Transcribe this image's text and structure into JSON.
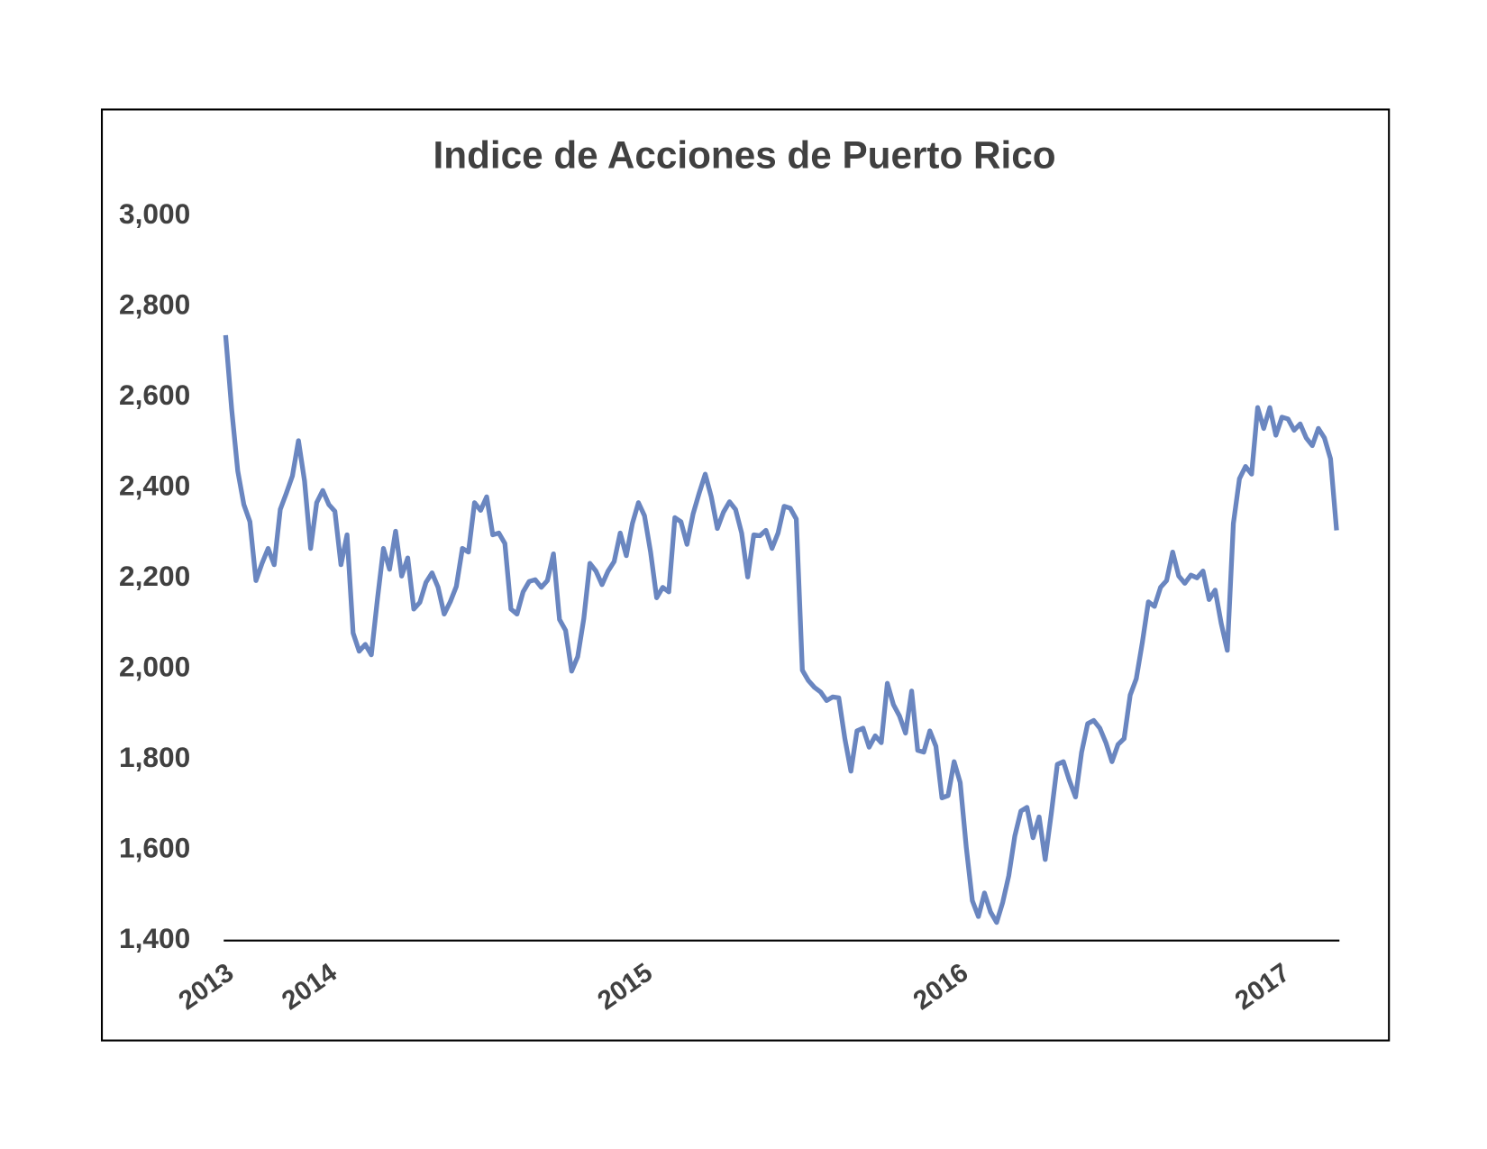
{
  "chart_data": {
    "type": "line",
    "title": "Indice de Acciones de Puerto Rico",
    "categories": [
      "2013",
      null,
      null,
      null,
      null,
      null,
      null,
      null,
      null,
      null,
      null,
      null,
      null,
      null,
      null,
      null,
      null,
      "2014",
      null,
      null,
      null,
      null,
      null,
      null,
      null,
      null,
      null,
      null,
      null,
      null,
      null,
      null,
      null,
      null,
      null,
      null,
      null,
      null,
      null,
      null,
      null,
      null,
      null,
      null,
      null,
      null,
      null,
      null,
      null,
      null,
      null,
      null,
      null,
      null,
      null,
      null,
      null,
      null,
      null,
      null,
      null,
      null,
      null,
      null,
      null,
      null,
      null,
      null,
      null,
      "2015",
      null,
      null,
      null,
      null,
      null,
      null,
      null,
      null,
      null,
      null,
      null,
      null,
      null,
      null,
      null,
      null,
      null,
      null,
      null,
      null,
      null,
      null,
      null,
      null,
      null,
      null,
      null,
      null,
      null,
      null,
      null,
      null,
      null,
      null,
      null,
      null,
      null,
      null,
      null,
      null,
      null,
      null,
      null,
      null,
      null,
      null,
      null,
      null,
      null,
      null,
      null,
      "2016",
      null,
      null,
      null,
      null,
      null,
      null,
      null,
      null,
      null,
      null,
      null,
      null,
      null,
      null,
      null,
      null,
      null,
      null,
      null,
      null,
      null,
      null,
      null,
      null,
      null,
      null,
      null,
      null,
      null,
      null,
      null,
      null,
      null,
      null,
      null,
      null,
      null,
      null,
      null,
      null,
      null,
      null,
      null,
      null,
      null,
      null,
      null,
      null,
      null,
      null,
      null,
      null,
      "2017",
      null,
      null,
      null,
      null,
      null,
      null,
      null,
      null,
      null
    ],
    "series": [
      {
        "name": "Indice de Acciones de Puerto Rico",
        "color": "#6a86c0",
        "values": [
          2737,
          2573,
          2437,
          2363,
          2325,
          2195,
          2233,
          2266,
          2230,
          2352,
          2388,
          2426,
          2504,
          2415,
          2266,
          2367,
          2394,
          2363,
          2348,
          2230,
          2296,
          2079,
          2039,
          2054,
          2031,
          2153,
          2266,
          2220,
          2304,
          2205,
          2245,
          2132,
          2147,
          2191,
          2212,
          2180,
          2121,
          2148,
          2182,
          2266,
          2258,
          2367,
          2350,
          2380,
          2296,
          2300,
          2277,
          2132,
          2121,
          2170,
          2193,
          2197,
          2180,
          2195,
          2254,
          2109,
          2085,
          1995,
          2027,
          2111,
          2233,
          2216,
          2186,
          2216,
          2237,
          2300,
          2250,
          2321,
          2367,
          2338,
          2258,
          2157,
          2180,
          2170,
          2334,
          2325,
          2275,
          2342,
          2388,
          2430,
          2380,
          2310,
          2346,
          2369,
          2352,
          2300,
          2203,
          2296,
          2294,
          2306,
          2266,
          2300,
          2359,
          2355,
          2331,
          1997,
          1974,
          1959,
          1949,
          1930,
          1938,
          1936,
          1846,
          1774,
          1863,
          1869,
          1827,
          1852,
          1837,
          1968,
          1921,
          1896,
          1858,
          1951,
          1820,
          1816,
          1863,
          1829,
          1715,
          1720,
          1795,
          1749,
          1606,
          1488,
          1453,
          1505,
          1463,
          1440,
          1484,
          1543,
          1631,
          1686,
          1694,
          1627,
          1673,
          1579,
          1680,
          1789,
          1795,
          1753,
          1717,
          1816,
          1879,
          1886,
          1869,
          1837,
          1795,
          1833,
          1846,
          1942,
          1978,
          2058,
          2148,
          2138,
          2180,
          2195,
          2258,
          2205,
          2189,
          2207,
          2201,
          2216,
          2153,
          2174,
          2100,
          2041,
          2321,
          2420,
          2447,
          2430,
          2577,
          2531,
          2577,
          2516,
          2556,
          2552,
          2527,
          2541,
          2510,
          2493,
          2531,
          2510,
          2464,
          2306
        ]
      }
    ],
    "ylim": [
      1400,
      3000
    ],
    "yticks": [
      {
        "value": 1400,
        "label": "1,400"
      },
      {
        "value": 1600,
        "label": "1,600"
      },
      {
        "value": 1800,
        "label": "1,800"
      },
      {
        "value": 2000,
        "label": "2,000"
      },
      {
        "value": 2200,
        "label": "2,200"
      },
      {
        "value": 2400,
        "label": "2,400"
      },
      {
        "value": 2600,
        "label": "2,600"
      },
      {
        "value": 2800,
        "label": "2,800"
      },
      {
        "value": 3000,
        "label": "3,000"
      }
    ],
    "grid": false
  }
}
